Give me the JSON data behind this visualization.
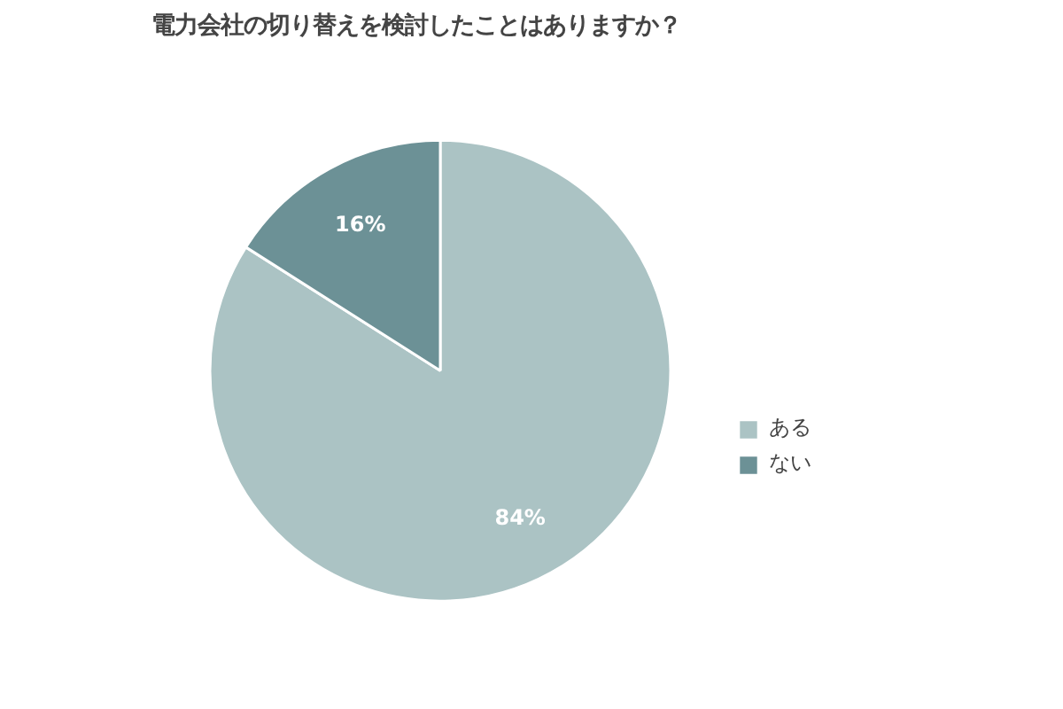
{
  "chart_data": {
    "type": "pie",
    "title": "電力会社の切り替えを検討したことはありますか？",
    "categories": [
      "ある",
      "ない"
    ],
    "values": [
      84,
      16
    ],
    "colors": [
      "#abc3c4",
      "#6c9196"
    ],
    "value_labels": [
      "84%",
      "16%"
    ],
    "legend": "right"
  }
}
